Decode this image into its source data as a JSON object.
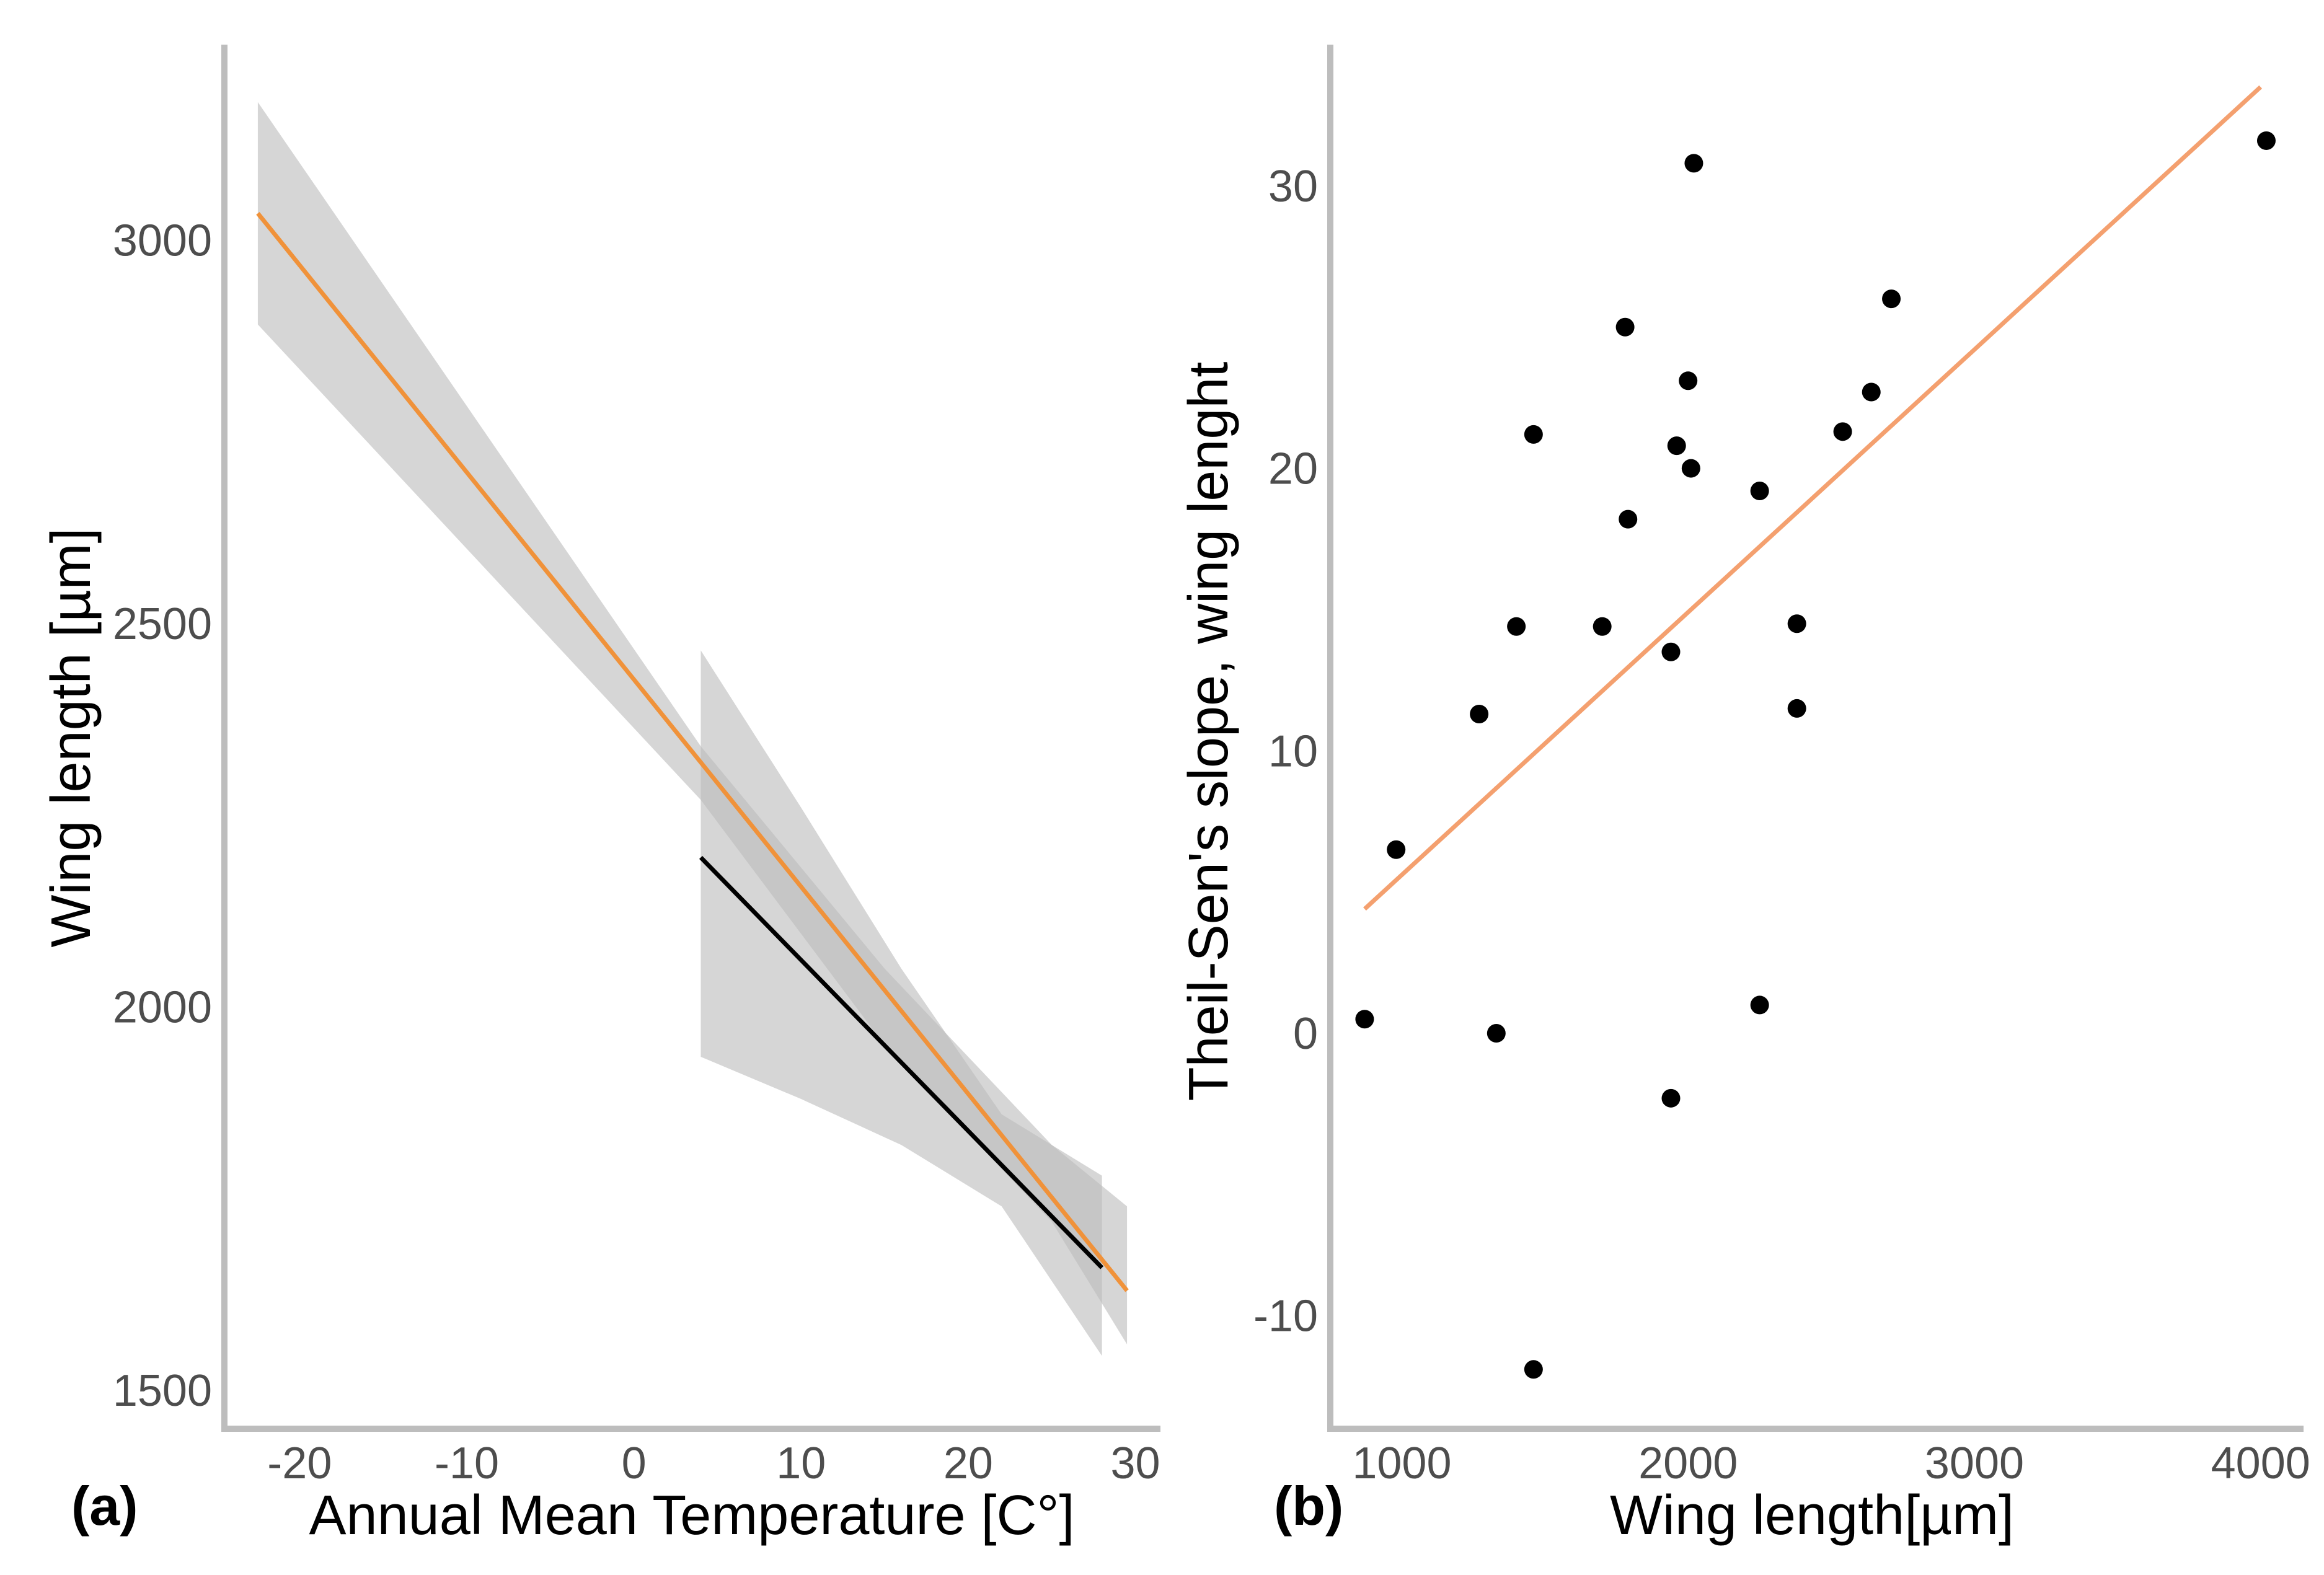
{
  "chart_data": [
    {
      "panel_label": "(a)",
      "type": "line",
      "xlabel": "Annual Mean Temperature [C°]",
      "ylabel": "Wing length [µm]",
      "xlim": [
        -24.5,
        31.5
      ],
      "ylim": [
        1450,
        3255
      ],
      "x_ticks": [
        -20,
        -10,
        0,
        10,
        20,
        30
      ],
      "x_tick_labels": [
        "-20",
        "-10",
        "0",
        "10",
        "20",
        "30"
      ],
      "y_ticks": [
        1500,
        2000,
        2500,
        3000
      ],
      "y_tick_labels": [
        "1500",
        "2000",
        "2500",
        "3000"
      ],
      "series": [
        {
          "color": "#f0923a",
          "line": {
            "x": [
              -22.5,
              29.5
            ],
            "y": [
              3035,
              1630
            ]
          },
          "band": {
            "x": [
              -22.5,
              4.0,
              15.0,
              25.0,
              29.5
            ],
            "lo": [
              2890,
              2270,
              1950,
              1720,
              1560
            ],
            "hi": [
              3180,
              2340,
              2050,
              1820,
              1740
            ]
          }
        },
        {
          "color": "#000000",
          "line": {
            "x": [
              4.0,
              28.0
            ],
            "y": [
              2195,
              1660
            ]
          },
          "band": {
            "x": [
              4.0,
              10.0,
              16.0,
              22.0,
              28.0
            ],
            "lo": [
              1935,
              1880,
              1820,
              1740,
              1545
            ],
            "hi": [
              2465,
              2260,
              2050,
              1860,
              1780
            ]
          }
        }
      ],
      "band_color": "#bdbdbd"
    },
    {
      "panel_label": "(b)",
      "type": "scatter",
      "xlabel": "Wing length[µm]",
      "ylabel": "Theil-Sen's slope, wing lenght",
      "xlim": [
        750,
        4150
      ],
      "ylim": [
        -14,
        35
      ],
      "x_ticks": [
        1000,
        2000,
        3000,
        4000
      ],
      "x_tick_labels": [
        "1000",
        "2000",
        "3000",
        "4000"
      ],
      "y_ticks": [
        -10,
        0,
        10,
        20,
        30
      ],
      "y_tick_labels": [
        "-10",
        "0",
        "10",
        "20",
        "30"
      ],
      "points": {
        "x": [
          870,
          980,
          1270,
          1330,
          1400,
          1460,
          1460,
          1700,
          1780,
          1790,
          1940,
          1940,
          1960,
          2000,
          2010,
          2020,
          2250,
          2250,
          2380,
          2380,
          2540,
          2640,
          2710,
          4020
        ],
        "y": [
          0.5,
          6.5,
          11.3,
          0,
          14.4,
          21.2,
          -11.9,
          14.4,
          25,
          18.2,
          13.5,
          -2.3,
          20.8,
          23.1,
          20,
          30.8,
          19.2,
          1,
          14.5,
          11.5,
          21.3,
          22.7,
          26,
          31.6
        ]
      },
      "point_color": "#000000",
      "fit_line": {
        "x": [
          870,
          4000
        ],
        "y": [
          4.4,
          33.5
        ],
        "color": "#f4a06f"
      }
    }
  ]
}
